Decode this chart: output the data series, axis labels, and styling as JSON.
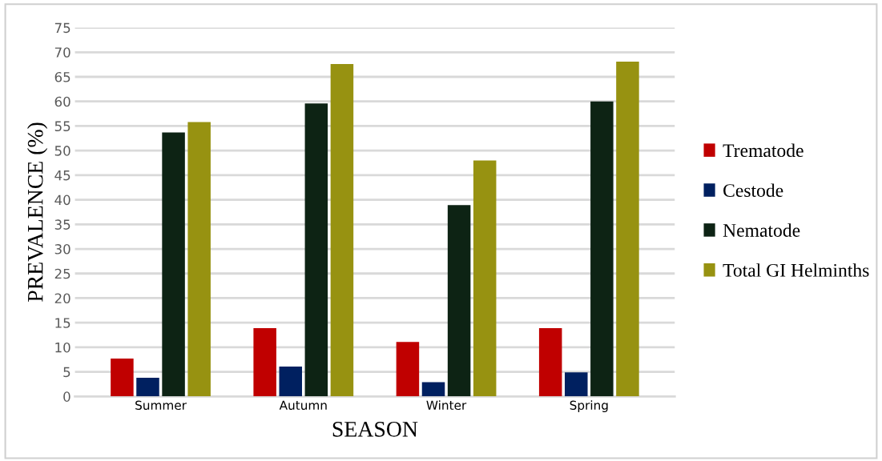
{
  "chart_data": {
    "type": "bar",
    "xlabel": "SEASON",
    "ylabel": "PREVALENCE (%)",
    "categories": [
      "Summer",
      "Autumn",
      "Winter",
      "Spring"
    ],
    "series": [
      {
        "name": "Trematode",
        "color": "#c00000",
        "values": [
          7.7,
          13.9,
          11.1,
          13.9
        ]
      },
      {
        "name": "Cestode",
        "color": "#002060",
        "values": [
          3.8,
          6.1,
          2.9,
          4.9
        ]
      },
      {
        "name": "Nematode",
        "color": "#0d2314",
        "values": [
          53.7,
          59.6,
          38.9,
          60.0
        ]
      },
      {
        "name": "Total GI Helminths",
        "color": "#979211",
        "values": [
          55.8,
          67.6,
          48.0,
          68.1
        ]
      }
    ],
    "ylim": [
      0,
      75
    ],
    "yticks": [
      0,
      5,
      10,
      15,
      20,
      25,
      30,
      35,
      40,
      45,
      50,
      55,
      60,
      65,
      70,
      75
    ],
    "grid": "y",
    "legend": "right"
  }
}
